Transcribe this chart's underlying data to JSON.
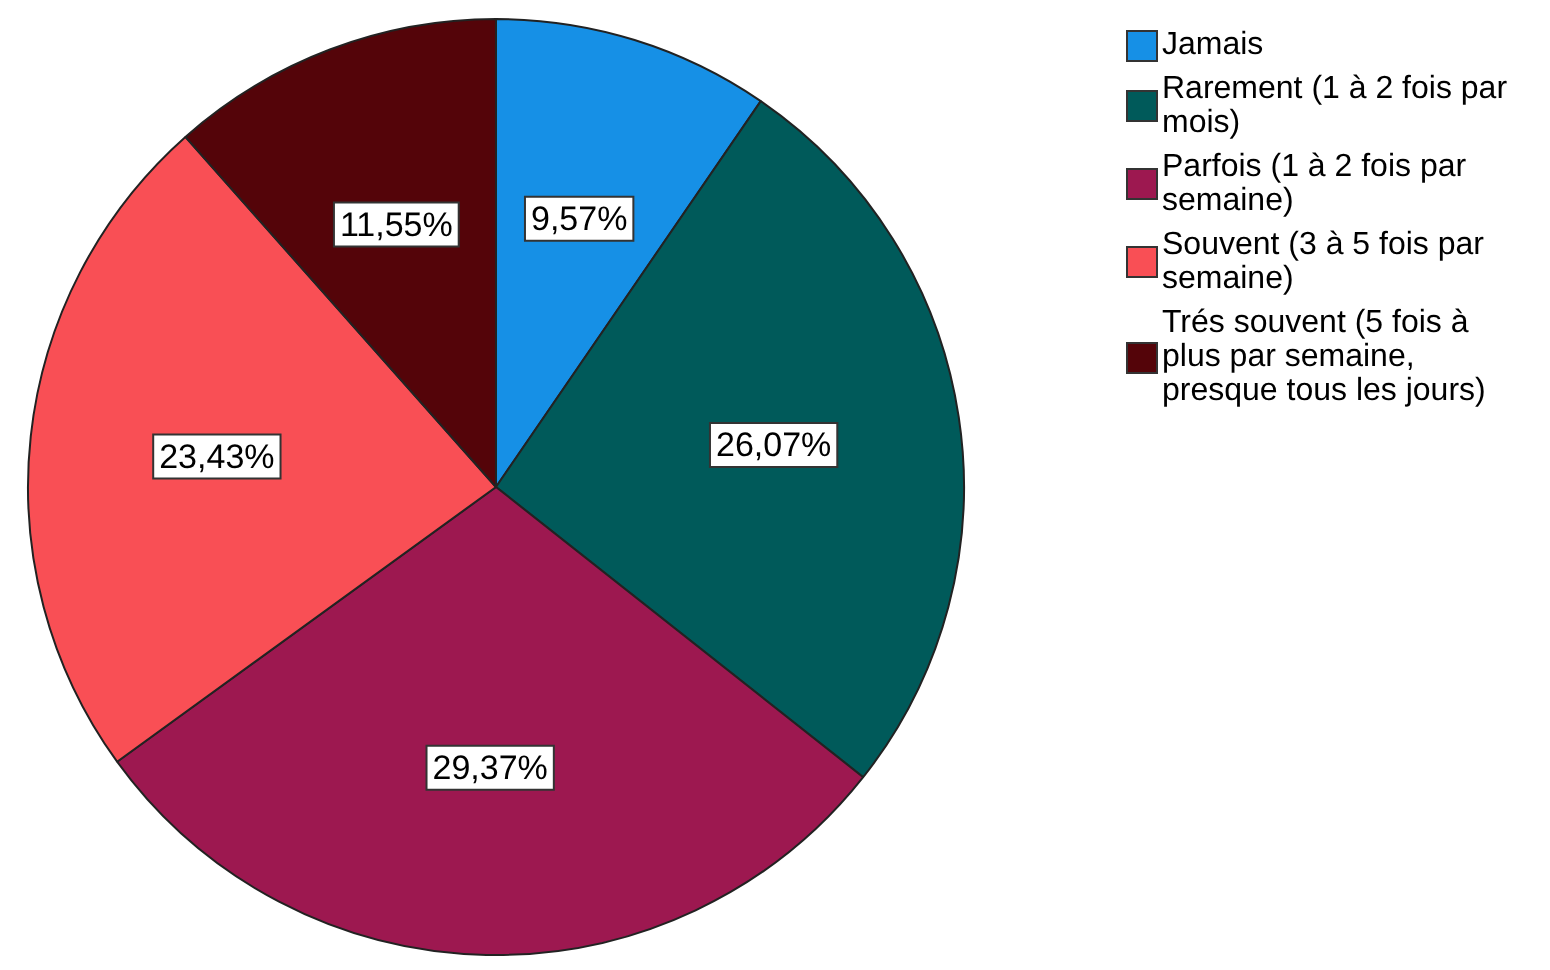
{
  "chart_data": {
    "type": "pie",
    "categories": [
      "Jamais",
      "Rarement (1 à 2 fois par mois)",
      "Parfois (1 à 2 fois par semaine)",
      "Souvent (3 à 5 fois par semaine)",
      "Trés souvent (5 fois à plus par semaine, presque tous les jours)"
    ],
    "values": [
      9.57,
      26.07,
      29.37,
      23.43,
      11.55
    ],
    "value_labels": [
      "9,57%",
      "26,07%",
      "29,37%",
      "23,43%",
      "11,55%"
    ],
    "colors": [
      "#1690e6",
      "#005a5a",
      "#9d1850",
      "#f94f55",
      "#540409"
    ],
    "legend": "top right"
  }
}
